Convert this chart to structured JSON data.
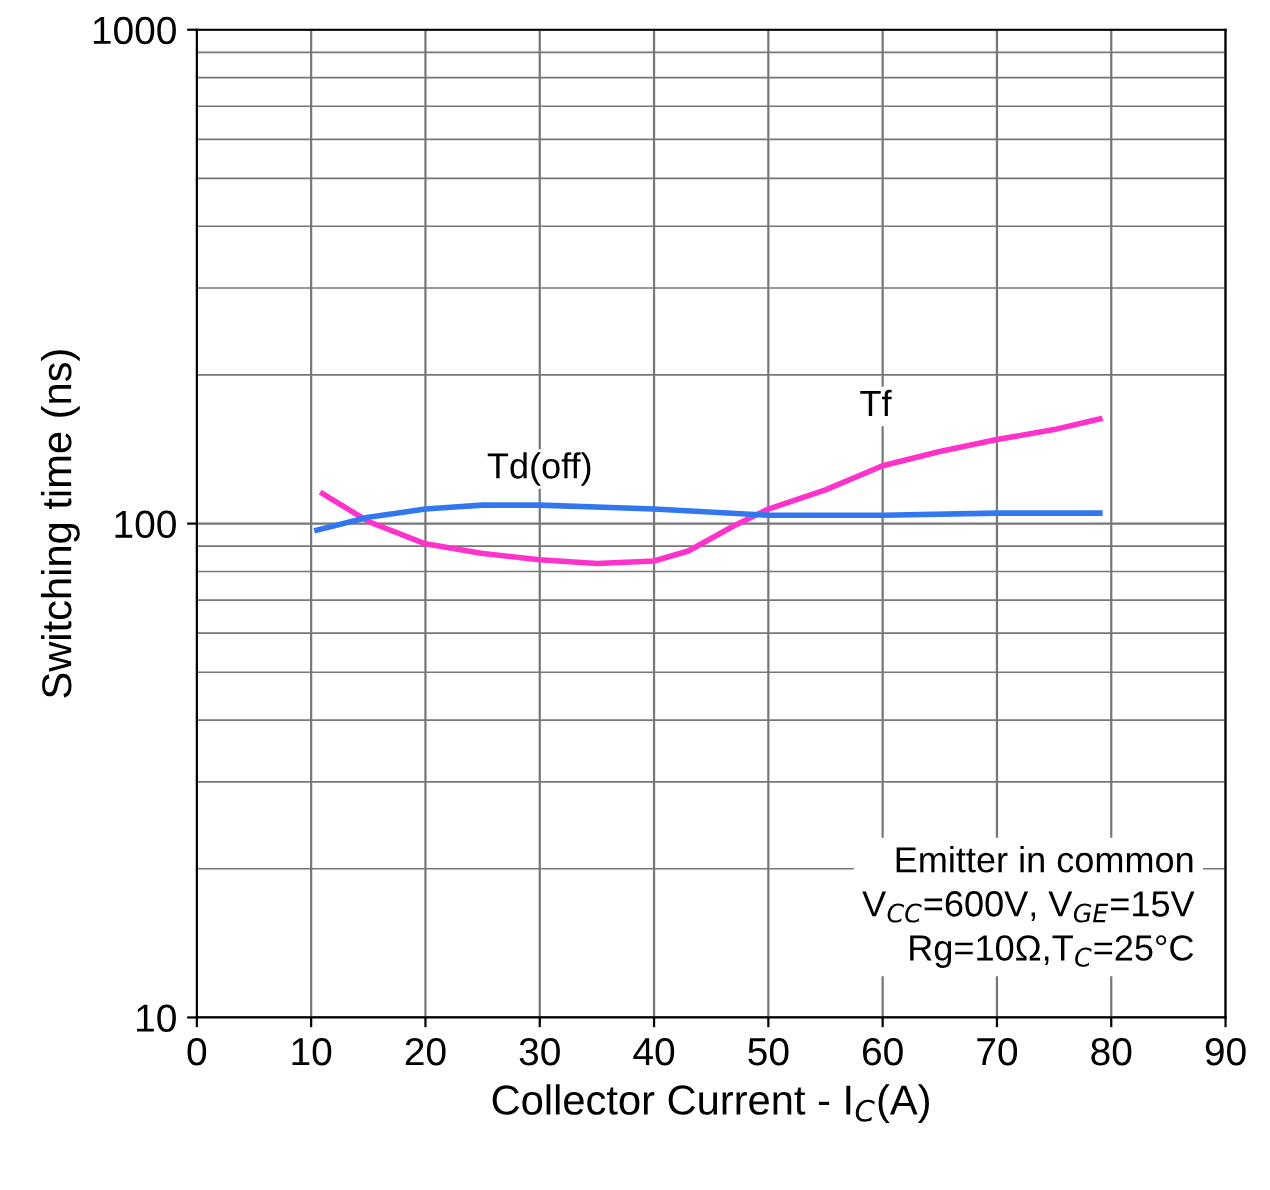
{
  "chart_data": {
    "type": "line",
    "xlabel": "Collector Current - I$_{C}$(A)",
    "ylabel": "Switching time (ns)",
    "series": [
      {
        "name": "Tf",
        "color": "#ff33cc",
        "x": [
          11,
          15,
          20,
          25,
          30,
          35,
          40,
          43,
          47,
          50,
          55,
          60,
          65,
          70,
          75,
          79
        ],
        "values": [
          115,
          101,
          91,
          87,
          84.5,
          83,
          84,
          88,
          99,
          107,
          117,
          131,
          140,
          148,
          155,
          163
        ]
      },
      {
        "name": "Td(off)",
        "color": "#3377ee",
        "x": [
          10.5,
          15,
          20,
          25,
          30,
          40,
          50,
          60,
          70,
          79
        ],
        "values": [
          97,
          103,
          107,
          109,
          109,
          107,
          104,
          104,
          105,
          105
        ]
      }
    ],
    "annotations": [
      "Emitter in common\nV$_{CC}$=600V, V$_{GE}$=15V\nRg=10Ω,T$_{C}$=25°C"
    ],
    "log": "y",
    "xlim": [
      0,
      90
    ],
    "xticks": [
      0,
      10,
      20,
      30,
      40,
      50,
      60,
      70,
      80,
      90
    ],
    "ylim": [
      10,
      1000
    ],
    "yticks": [
      10,
      100,
      1000
    ],
    "grid": true,
    "marker": "none",
    "line_style": "solid"
  }
}
